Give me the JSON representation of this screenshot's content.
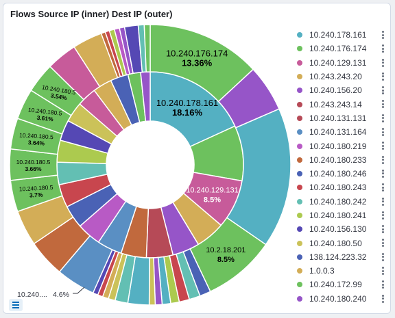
{
  "title": "Flows Source IP (inner) Dest IP (outer)",
  "colors": {
    "teal": "#54b0c2",
    "green": "#6dc15e",
    "pink": "#c75b9a",
    "mustard": "#d3ad57",
    "purple": "#9655c8",
    "brick": "#b64a57",
    "blue": "#5a8fc3",
    "magenta": "#b85ac5",
    "mint": "#63bfb3",
    "navy": "#4a62b5",
    "red": "#c8464e",
    "lime": "#acca4f",
    "indigo": "#5548b4",
    "olive": "#cbc259",
    "rust": "#c1693d"
  },
  "legend": [
    {
      "label": "10.240.178.161",
      "color": "#54b0c2"
    },
    {
      "label": "10.240.176.174",
      "color": "#6dc15e"
    },
    {
      "label": "10.240.129.131",
      "color": "#c75b9a"
    },
    {
      "label": "10.243.243.20",
      "color": "#d3ad57"
    },
    {
      "label": "10.240.156.20",
      "color": "#9655c8"
    },
    {
      "label": "10.243.243.14",
      "color": "#b64a57"
    },
    {
      "label": "10.240.131.131",
      "color": "#b64a57"
    },
    {
      "label": "10.240.131.164",
      "color": "#5a8fc3"
    },
    {
      "label": "10.240.180.219",
      "color": "#b85ac5"
    },
    {
      "label": "10.240.180.233",
      "color": "#c1693d"
    },
    {
      "label": "10.240.180.246",
      "color": "#4a62b5"
    },
    {
      "label": "10.240.180.243",
      "color": "#c8464e"
    },
    {
      "label": "10.240.180.242",
      "color": "#63bfb3"
    },
    {
      "label": "10.240.180.241",
      "color": "#acca4f"
    },
    {
      "label": "10.240.156.130",
      "color": "#5548b4"
    },
    {
      "label": "10.240.180.50",
      "color": "#cbc259"
    },
    {
      "label": "138.124.223.32",
      "color": "#4a62b5"
    },
    {
      "label": "1.0.0.3",
      "color": "#d3ad57"
    },
    {
      "label": "10.240.172.99",
      "color": "#6dc15e"
    },
    {
      "label": "10.240.180.240",
      "color": "#9655c8"
    }
  ],
  "outside_label": {
    "text": "10.240....",
    "pct": "4.6%"
  },
  "chart_data": {
    "type": "pie",
    "title": "Flows Source IP (inner) Dest IP (outer)",
    "inner": [
      {
        "label": "10.240.178.161",
        "pct": "18.16%",
        "value": 18.16,
        "color": "#54b0c2"
      },
      {
        "label": "",
        "value": 9.6,
        "color": "#6dc15e"
      },
      {
        "label": "10.240.129.131",
        "pct": "8.5%",
        "value": 8.5,
        "color": "#c75b9a"
      },
      {
        "label": "",
        "value": 5.1,
        "color": "#d3ad57"
      },
      {
        "label": "",
        "value": 4.7,
        "color": "#9655c8"
      },
      {
        "label": "",
        "value": 4.6,
        "color": "#b64a57"
      },
      {
        "label": "",
        "value": 4.4,
        "color": "#c1693d"
      },
      {
        "label": "",
        "value": 4.3,
        "color": "#5a8fc3"
      },
      {
        "label": "",
        "value": 4.2,
        "color": "#b85ac5"
      },
      {
        "label": "",
        "value": 4.0,
        "color": "#4a62b5"
      },
      {
        "label": "",
        "value": 4.0,
        "color": "#c8464e"
      },
      {
        "label": "",
        "value": 3.9,
        "color": "#63bfb3"
      },
      {
        "label": "",
        "value": 3.8,
        "color": "#acca4f"
      },
      {
        "label": "",
        "value": 3.6,
        "color": "#5548b4"
      },
      {
        "label": "",
        "value": 3.5,
        "color": "#cbc259"
      },
      {
        "label": "",
        "value": 3.4,
        "color": "#c75b9a"
      },
      {
        "label": "",
        "value": 3.3,
        "color": "#d3ad57"
      },
      {
        "label": "",
        "value": 3.1,
        "color": "#4a62b5"
      },
      {
        "label": "",
        "value": 2.2,
        "color": "#6dc15e"
      },
      {
        "label": "",
        "value": 1.64,
        "color": "#9655c8"
      }
    ],
    "outer": [
      {
        "label": "10.240.176.174",
        "pct": "13.36%",
        "value": 13.36,
        "color": "#6dc15e"
      },
      {
        "label": "",
        "value": 5.5,
        "color": "#9655c8"
      },
      {
        "label": "",
        "value": 16.5,
        "color": "#54b0c2"
      },
      {
        "label": "10.2.18.201",
        "pct": "8.5%",
        "value": 8.5,
        "color": "#6dc15e"
      },
      {
        "label": "",
        "value": 1.3,
        "color": "#4a62b5"
      },
      {
        "label": "",
        "value": 1.3,
        "color": "#63bfb3"
      },
      {
        "label": "",
        "value": 1.2,
        "color": "#c8464e"
      },
      {
        "label": "",
        "value": 1.0,
        "color": "#acca4f"
      },
      {
        "label": "",
        "value": 1.0,
        "color": "#54b0c2"
      },
      {
        "label": "",
        "value": 0.8,
        "color": "#9655c8"
      },
      {
        "label": "",
        "value": 0.7,
        "color": "#cbc259"
      },
      {
        "label": "",
        "value": 2.5,
        "color": "#54b0c2"
      },
      {
        "label": "",
        "value": 1.5,
        "color": "#63bfb3"
      },
      {
        "label": "",
        "value": 0.8,
        "color": "#cbc259"
      },
      {
        "label": "",
        "value": 0.7,
        "color": "#d3ad57"
      },
      {
        "label": "",
        "value": 0.6,
        "color": "#c8464e"
      },
      {
        "label": "",
        "value": 0.6,
        "color": "#5548b4"
      },
      {
        "label": "10.240....",
        "pct": "4.6%",
        "value": 4.6,
        "color": "#5a8fc3"
      },
      {
        "label": "",
        "value": 4.4,
        "color": "#c1693d"
      },
      {
        "label": "",
        "value": 4.2,
        "color": "#d3ad57"
      },
      {
        "label": "10.240.180.5",
        "pct": "3.7%",
        "value": 3.7,
        "color": "#6dc15e"
      },
      {
        "label": "10.240.180.5",
        "pct": "3.66%",
        "value": 3.66,
        "color": "#6dc15e"
      },
      {
        "label": "10.240.180.5",
        "pct": "3.64%",
        "value": 3.64,
        "color": "#6dc15e"
      },
      {
        "label": "10.240.180.5",
        "pct": "3.61%",
        "value": 3.61,
        "color": "#6dc15e"
      },
      {
        "label": "10.240.180.5",
        "pct": "3.54%",
        "value": 3.54,
        "color": "#6dc15e"
      },
      {
        "label": "",
        "value": 3.6,
        "color": "#c75b9a"
      },
      {
        "label": "",
        "value": 3.5,
        "color": "#d3ad57"
      },
      {
        "label": "",
        "value": 0.5,
        "color": "#c1693d"
      },
      {
        "label": "",
        "value": 0.5,
        "color": "#c8464e"
      },
      {
        "label": "",
        "value": 0.6,
        "color": "#acca4f"
      },
      {
        "label": "",
        "value": 0.6,
        "color": "#b85ac5"
      },
      {
        "label": "",
        "value": 0.6,
        "color": "#9655c8"
      },
      {
        "label": "",
        "value": 1.6,
        "color": "#5548b4"
      },
      {
        "label": "",
        "value": 0.7,
        "color": "#63bfb3"
      },
      {
        "label": "",
        "value": 0.69,
        "color": "#6dc15e"
      }
    ]
  }
}
